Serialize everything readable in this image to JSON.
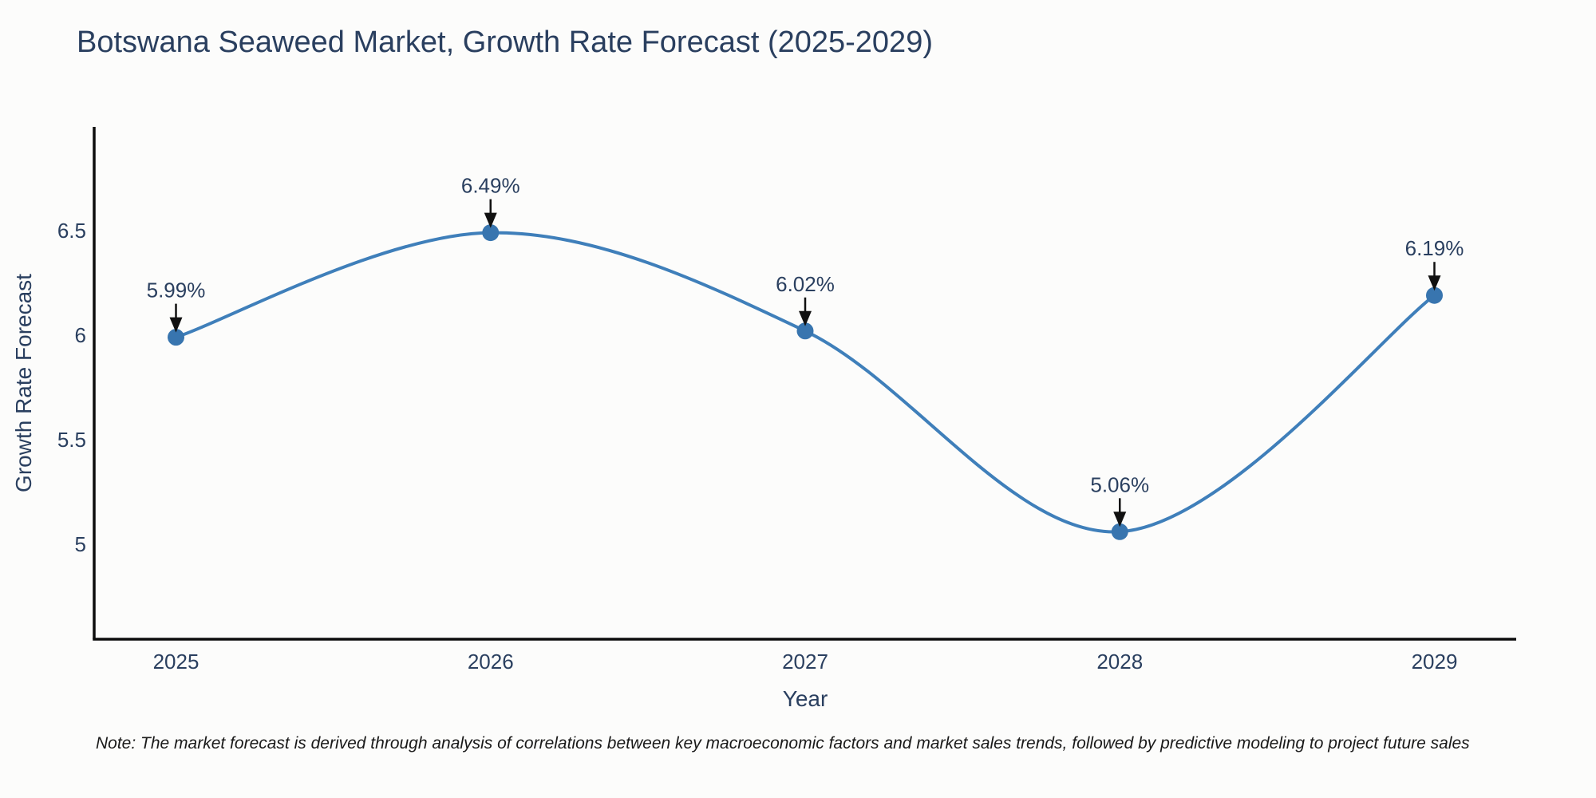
{
  "title": "Botswana Seaweed Market, Growth Rate Forecast (2025-2029)",
  "note": "Note: The market forecast is derived through analysis of correlations between key macroeconomic factors and market sales trends, followed by predictive modeling to project future sales",
  "chart_data": {
    "type": "line",
    "title": "Botswana Seaweed Market, Growth Rate Forecast (2025-2029)",
    "xlabel": "Year",
    "ylabel": "Growth Rate Forecast",
    "x": [
      2025,
      2026,
      2027,
      2028,
      2029
    ],
    "values": [
      5.99,
      6.49,
      6.02,
      5.06,
      6.19
    ],
    "point_labels": [
      "5.99%",
      "6.49%",
      "6.02%",
      "5.06%",
      "6.19%"
    ],
    "xtick_labels": [
      "2025",
      "2026",
      "2027",
      "2028",
      "2029"
    ],
    "ytick_values": [
      5,
      5.5,
      6,
      6.5
    ],
    "ytick_labels": [
      "5",
      "5.5",
      "6",
      "6.5"
    ],
    "xlim": [
      2024.74,
      2029.26
    ],
    "ylim": [
      4.546,
      6.996
    ],
    "grid": false,
    "legend": "none",
    "curve": "spline",
    "line_color": "#3f7fba",
    "marker_color": "#3875af",
    "arrow_color": "#111111",
    "text_color": "#2a3f5f",
    "spine_color": "#0d0d0d"
  }
}
